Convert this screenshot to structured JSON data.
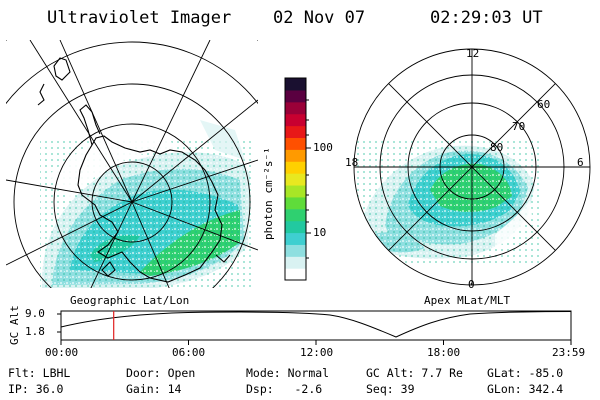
{
  "header": {
    "title": "Ultraviolet Imager",
    "date": "02 Nov 07",
    "time": "02:29:03 UT"
  },
  "colorbar": {
    "unit_label": "photon cm⁻²s⁻¹",
    "ticks": [
      "100",
      "10"
    ],
    "colors": [
      "#ffffff",
      "#d9f2f2",
      "#8fdfe0",
      "#3fcfd0",
      "#22c9a0",
      "#2fd070",
      "#5fdc3a",
      "#a8e626",
      "#e8e820",
      "#ffd000",
      "#ff9a00",
      "#ff5000",
      "#e81818",
      "#c80030",
      "#9a0038",
      "#5a0040",
      "#1a1030"
    ]
  },
  "left_map": {
    "caption": "Geographic Lat/Lon",
    "projection": "geographic"
  },
  "right_map": {
    "caption": "Apex MLat/MLT",
    "mlt_labels": {
      "top": "12",
      "left": "18",
      "right": "6",
      "bottom": "0"
    },
    "lat_labels": [
      "60",
      "70",
      "80"
    ]
  },
  "timeline": {
    "axis_label": "GC Alt",
    "y_ticks": [
      "9.0",
      "1.8"
    ],
    "x_ticks": [
      "00:00",
      "06:00",
      "12:00",
      "18:00",
      "23:59"
    ],
    "marker_hour": 2.48
  },
  "footer": {
    "flt_label": "Flt:",
    "flt_value": "LBHL",
    "ip_label": "IP:",
    "ip_value": "36.0",
    "door_label": "Door:",
    "door_value": "Open",
    "gain_label": "Gain:",
    "gain_value": "14",
    "mode_label": "Mode:",
    "mode_value": "Normal",
    "dsp_label": "Dsp:",
    "dsp_value": "-2.6",
    "gcalt_label": "GC Alt:",
    "gcalt_value": "7.7 Re",
    "seq_label": "Seq:",
    "seq_value": "39",
    "glat_label": "GLat:",
    "glat_value": "-85.0",
    "glon_label": "GLon:",
    "glon_value": "342.4"
  }
}
